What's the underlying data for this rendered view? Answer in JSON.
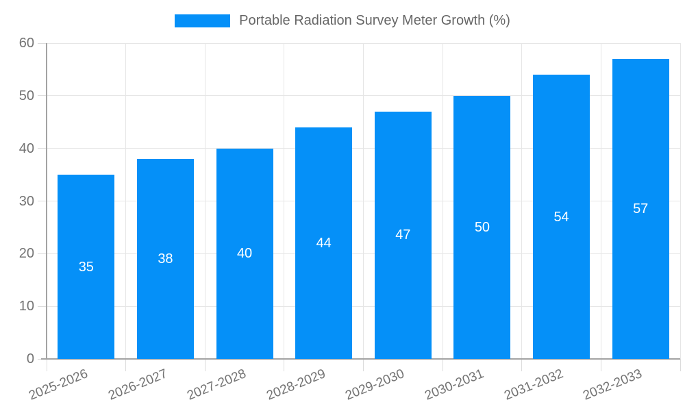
{
  "legend": {
    "label": "Portable Radiation Survey Meter Growth (%)"
  },
  "chart_data": {
    "type": "bar",
    "title": "Portable Radiation Survey Meter Growth (%)",
    "categories": [
      "2025-2026",
      "2026-2027",
      "2027-2028",
      "2028-2029",
      "2029-2030",
      "2030-2031",
      "2031-2032",
      "2032-2033"
    ],
    "values": [
      35,
      38,
      40,
      44,
      47,
      50,
      54,
      57
    ],
    "xlabel": "",
    "ylabel": "",
    "ylim": [
      0,
      60
    ],
    "yticks": [
      0,
      10,
      20,
      30,
      40,
      50,
      60
    ],
    "grid": true,
    "legend_position": "top",
    "colors": {
      "bar": "#0590f8",
      "value_label": "#ffffff",
      "axis_text": "#737373",
      "legend_text": "#666666",
      "gridline": "#e6e6e6",
      "axis_line": "#a3a3a3",
      "background": "#ffffff"
    }
  }
}
